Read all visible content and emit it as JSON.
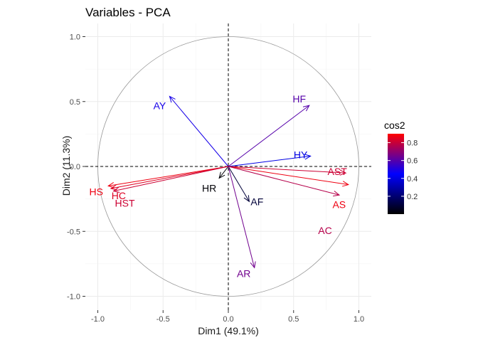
{
  "chart_data": {
    "type": "scatter",
    "subtype": "pca-variable-correlation-circle",
    "title": "Variables - PCA",
    "xlabel": "Dim1 (49.1%)",
    "ylabel": "Dim2 (11.3%)",
    "xlim": [
      -1.1,
      1.1
    ],
    "ylim": [
      -1.1,
      1.1
    ],
    "x_ticks": [
      "-1.0",
      "-0.5",
      "0.0",
      "0.5",
      "1.0"
    ],
    "y_ticks": [
      "-1.0",
      "-0.5",
      "0.0",
      "0.5",
      "1.0"
    ],
    "grid": true,
    "legend_position": "right",
    "legend": {
      "title": "cos2",
      "ticks": [
        "0.2",
        "0.4",
        "0.6",
        "0.8"
      ],
      "range": [
        0,
        0.9
      ],
      "gradient": [
        "#000000",
        "#0000ff",
        "#ff0000"
      ]
    },
    "variables": [
      {
        "name": "AY",
        "x": -0.45,
        "y": 0.54,
        "cos2": 0.49
      },
      {
        "name": "HF",
        "x": 0.62,
        "y": 0.47,
        "cos2": 0.6
      },
      {
        "name": "HY",
        "x": 0.63,
        "y": 0.08,
        "cos2": 0.4
      },
      {
        "name": "AST",
        "x": 0.9,
        "y": -0.05,
        "cos2": 0.81
      },
      {
        "name": "AS",
        "x": 0.92,
        "y": -0.14,
        "cos2": 0.87
      },
      {
        "name": "AC",
        "x": 0.85,
        "y": -0.22,
        "cos2": 0.77
      },
      {
        "name": "AF",
        "x": 0.16,
        "y": -0.27,
        "cos2": 0.1
      },
      {
        "name": "AR",
        "x": 0.2,
        "y": -0.78,
        "cos2": 0.65
      },
      {
        "name": "HR",
        "x": -0.07,
        "y": -0.09,
        "cos2": 0.01
      },
      {
        "name": "HS",
        "x": -0.92,
        "y": -0.15,
        "cos2": 0.87
      },
      {
        "name": "HC",
        "x": -0.9,
        "y": -0.17,
        "cos2": 0.84
      },
      {
        "name": "HST",
        "x": -0.88,
        "y": -0.19,
        "cos2": 0.81
      }
    ]
  }
}
